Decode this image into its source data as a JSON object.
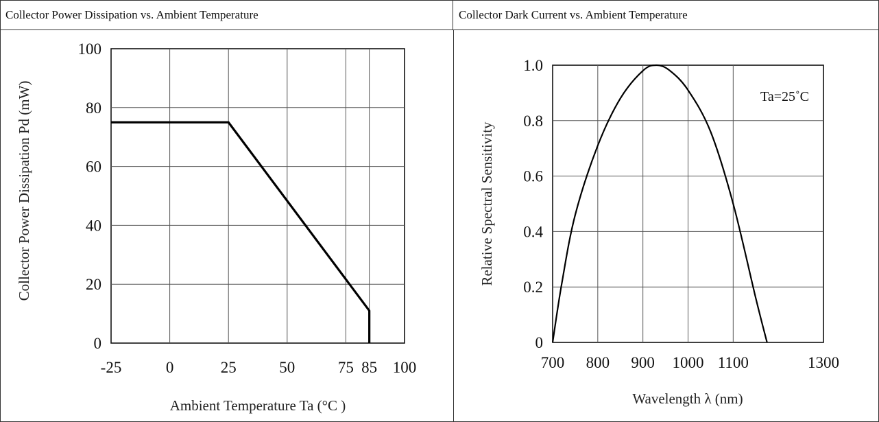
{
  "headers": {
    "left": "Collector Power Dissipation vs. Ambient Temperature",
    "right": "Collector Dark Current    vs. Ambient Temperature"
  },
  "chart_data": [
    {
      "type": "line",
      "title": "Collector Power Dissipation vs. Ambient Temperature",
      "xlabel": "Ambient Temperature Ta (°C )",
      "ylabel": "Collector Power Dissipation Pd (mW)",
      "xlim": [
        -25,
        100
      ],
      "ylim": [
        0,
        100
      ],
      "x_ticks": [
        "-25",
        "0",
        "25",
        "50",
        "75",
        "85",
        "100"
      ],
      "x_tick_values": [
        -25,
        0,
        25,
        50,
        75,
        85,
        100
      ],
      "y_ticks": [
        "0",
        "20",
        "40",
        "60",
        "80",
        "100"
      ],
      "y_tick_values": [
        0,
        20,
        40,
        60,
        80,
        100
      ],
      "grid": true,
      "series": [
        {
          "x": [
            -25,
            25,
            85,
            85
          ],
          "y": [
            75,
            75,
            11,
            0
          ]
        }
      ]
    },
    {
      "type": "line",
      "title": "Collector Dark Current    vs. Ambient Temperature",
      "xlabel": "Wavelength λ (nm)",
      "ylabel": "Relative Spectral Sensitivity",
      "xlim": [
        700,
        1300
      ],
      "ylim": [
        0,
        1.0
      ],
      "x_ticks": [
        "700",
        "800",
        "900",
        "1000",
        "1100",
        "1300"
      ],
      "x_tick_values": [
        700,
        800,
        900,
        1000,
        1100,
        1300
      ],
      "y_ticks": [
        "0",
        "0.2",
        "0.4",
        "0.6",
        "0.8",
        "1.0"
      ],
      "y_tick_values": [
        0,
        0.2,
        0.4,
        0.6,
        0.8,
        1.0
      ],
      "grid": true,
      "annotation": "Ta=25˚C",
      "series": [
        {
          "x": [
            700,
            720,
            750,
            800,
            850,
            900,
            930,
            960,
            1000,
            1050,
            1100,
            1150,
            1175
          ],
          "y": [
            0.0,
            0.21,
            0.46,
            0.71,
            0.88,
            0.98,
            1.0,
            0.98,
            0.91,
            0.76,
            0.5,
            0.16,
            0.0
          ]
        }
      ]
    }
  ]
}
